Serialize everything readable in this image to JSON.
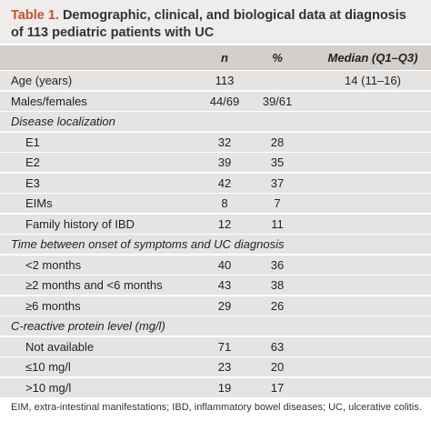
{
  "title": {
    "label": "Table 1.",
    "text": "Demographic, clinical, and biological data at diagnosis of 113 pediatric patients with UC"
  },
  "table": {
    "header": {
      "n": "n",
      "percent": "%",
      "median": "Median (Q1–Q3)"
    },
    "rows": [
      {
        "label": "Age (years)",
        "n": 113,
        "median": "14 (11–16)"
      },
      {
        "label": "Males/females",
        "n": "44/69",
        "percent": "39/61"
      },
      {
        "section": "Disease localization",
        "items": [
          {
            "label": "E1",
            "n": 32,
            "percent": 28
          },
          {
            "label": "E2",
            "n": 39,
            "percent": 35
          },
          {
            "label": "E3",
            "n": 42,
            "percent": 37
          },
          {
            "label": "EIMs",
            "n": 8,
            "percent": 7
          },
          {
            "label": "Family history of IBD",
            "n": 12,
            "percent": 11
          }
        ]
      },
      {
        "section": "Time between onset of symptoms and UC diagnosis",
        "items": [
          {
            "label": "<2 months",
            "n": 40,
            "percent": 36
          },
          {
            "label": "≥2 months and <6 months",
            "n": 43,
            "percent": 38
          },
          {
            "label": "≥6 months",
            "n": 29,
            "percent": 26
          }
        ]
      },
      {
        "section": "C-reactive protein level (mg/l)",
        "items": [
          {
            "label": "Not available",
            "n": 71,
            "percent": 63
          },
          {
            "label": "≤10 mg/l",
            "n": 23,
            "percent": 20
          },
          {
            "label": ">10 mg/l",
            "n": 19,
            "percent": 17
          }
        ]
      }
    ]
  },
  "footnote": "EIM, extra-intestinal manifestations; IBD, inflammatory bowel diseases; UC, ulcerative colitis."
}
